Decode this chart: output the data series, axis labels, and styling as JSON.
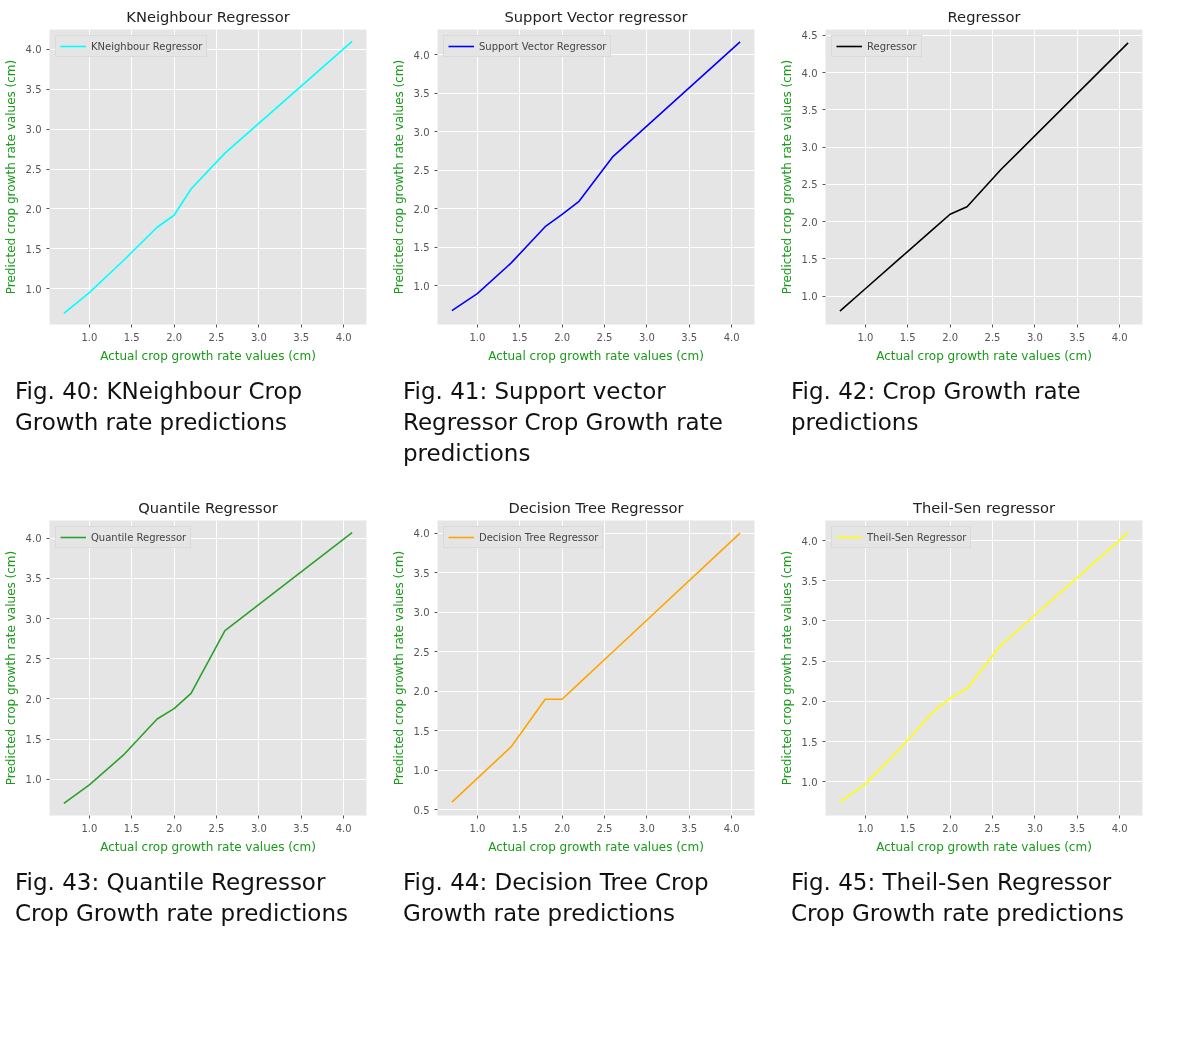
{
  "chart_data": [
    {
      "type": "line",
      "title": "KNeighbour Regressor",
      "xlabel": "Actual crop growth rate values (cm)",
      "ylabel": "Predicted crop growth rate values (cm)",
      "x": [
        0.7,
        1.0,
        1.4,
        1.8,
        2.0,
        2.2,
        2.6,
        4.1
      ],
      "series": [
        {
          "name": "KNeighbour Regressor",
          "color": "#00ffff",
          "values": [
            0.69,
            0.95,
            1.35,
            1.77,
            1.92,
            2.25,
            2.7,
            4.1
          ]
        }
      ],
      "xlim": [
        0.53,
        4.27
      ],
      "ylim": [
        0.55,
        4.25
      ],
      "xticks": [
        {
          "value": 1,
          "label": "1.0"
        },
        1.5,
        {
          "value": 2,
          "label": "2.0"
        },
        2.5,
        {
          "value": 3,
          "label": "3.0"
        },
        3.5,
        {
          "value": 4,
          "label": "4.0"
        }
      ],
      "yticks": [
        {
          "value": 1,
          "label": "1.0"
        },
        1.5,
        {
          "value": 2,
          "label": "2.0"
        },
        2.5,
        {
          "value": 3,
          "label": "3.0"
        },
        3.5,
        {
          "value": 4,
          "label": "4.0"
        }
      ],
      "grid": true,
      "legend": "top left",
      "annotations": [
        "Fig. 40: KNeighbour Crop Growth rate predictions"
      ]
    },
    {
      "type": "line",
      "title": "Support Vector regressor",
      "xlabel": "Actual crop growth rate values (cm)",
      "ylabel": "Predicted crop growth rate values (cm)",
      "x": [
        0.7,
        1.0,
        1.4,
        1.8,
        2.0,
        2.2,
        2.6,
        4.1
      ],
      "series": [
        {
          "name": "Support Vector Regressor",
          "color": "#0000ff",
          "values": [
            0.68,
            0.9,
            1.3,
            1.77,
            1.93,
            2.1,
            2.68,
            4.17
          ]
        }
      ],
      "xlim": [
        0.53,
        4.27
      ],
      "ylim": [
        0.5,
        4.33
      ],
      "xticks": [
        {
          "value": 1,
          "label": "1.0"
        },
        1.5,
        {
          "value": 2,
          "label": "2.0"
        },
        2.5,
        {
          "value": 3,
          "label": "3.0"
        },
        3.5,
        {
          "value": 4,
          "label": "4.0"
        }
      ],
      "yticks": [
        {
          "value": 1,
          "label": "1.0"
        },
        1.5,
        {
          "value": 2,
          "label": "2.0"
        },
        2.5,
        {
          "value": 3,
          "label": "3.0"
        },
        3.5,
        {
          "value": 4,
          "label": "4.0"
        }
      ],
      "grid": true,
      "legend": "top left",
      "annotations": [
        "Fig. 41: Support vector Regressor Crop Growth rate predictions"
      ]
    },
    {
      "type": "line",
      "title": "Regressor",
      "xlabel": "Actual crop growth rate values (cm)",
      "ylabel": "Predicted crop growth rate values (cm)",
      "x": [
        0.7,
        1.0,
        1.4,
        1.8,
        2.0,
        2.2,
        2.6,
        4.1
      ],
      "series": [
        {
          "name": "Regressor",
          "color": "#000000",
          "values": [
            0.8,
            1.1,
            1.5,
            1.9,
            2.1,
            2.2,
            2.7,
            4.4
          ]
        }
      ],
      "xlim": [
        0.53,
        4.27
      ],
      "ylim": [
        0.62,
        4.58
      ],
      "xticks": [
        {
          "value": 1,
          "label": "1.0"
        },
        1.5,
        {
          "value": 2,
          "label": "2.0"
        },
        2.5,
        {
          "value": 3,
          "label": "3.0"
        },
        3.5,
        {
          "value": 4,
          "label": "4.0"
        }
      ],
      "yticks": [
        {
          "value": 1,
          "label": "1.0"
        },
        1.5,
        {
          "value": 2,
          "label": "2.0"
        },
        2.5,
        {
          "value": 3,
          "label": "3.0"
        },
        3.5,
        {
          "value": 4,
          "label": "4.0"
        },
        4.5
      ],
      "grid": true,
      "legend": "top left",
      "annotations": [
        "Fig. 42: Crop Growth rate predictions"
      ]
    },
    {
      "type": "line",
      "title": "Quantile Regressor",
      "xlabel": "Actual crop growth rate values (cm)",
      "ylabel": "Predicted crop growth rate values (cm)",
      "x": [
        0.7,
        1.0,
        1.4,
        1.8,
        2.0,
        2.2,
        2.6,
        4.1
      ],
      "series": [
        {
          "name": "Quantile Regressor",
          "color": "#2ca02c",
          "values": [
            0.7,
            0.93,
            1.3,
            1.75,
            1.88,
            2.07,
            2.85,
            4.07
          ]
        }
      ],
      "xlim": [
        0.53,
        4.27
      ],
      "ylim": [
        0.55,
        4.22
      ],
      "xticks": [
        {
          "value": 1,
          "label": "1.0"
        },
        1.5,
        {
          "value": 2,
          "label": "2.0"
        },
        2.5,
        {
          "value": 3,
          "label": "3.0"
        },
        3.5,
        {
          "value": 4,
          "label": "4.0"
        }
      ],
      "yticks": [
        {
          "value": 1,
          "label": "1.0"
        },
        1.5,
        {
          "value": 2,
          "label": "2.0"
        },
        2.5,
        {
          "value": 3,
          "label": "3.0"
        },
        3.5,
        {
          "value": 4,
          "label": "4.0"
        }
      ],
      "grid": true,
      "legend": "top left",
      "annotations": [
        "Fig. 43: Quantile Regressor Crop Growth rate predictions"
      ]
    },
    {
      "type": "line",
      "title": "Decision Tree Regressor",
      "xlabel": "Actual crop growth rate values (cm)",
      "ylabel": "Predicted crop growth rate values (cm)",
      "x": [
        0.7,
        1.0,
        1.4,
        1.8,
        2.0,
        2.2,
        2.6,
        4.1
      ],
      "series": [
        {
          "name": "Decision Tree Regressor",
          "color": "#ffa500",
          "values": [
            0.6,
            0.9,
            1.3,
            1.9,
            1.9,
            2.1,
            2.5,
            4.0
          ]
        }
      ],
      "xlim": [
        0.53,
        4.27
      ],
      "ylim": [
        0.43,
        4.16
      ],
      "xticks": [
        {
          "value": 1,
          "label": "1.0"
        },
        1.5,
        {
          "value": 2,
          "label": "2.0"
        },
        2.5,
        {
          "value": 3,
          "label": "3.0"
        },
        3.5,
        {
          "value": 4,
          "label": "4.0"
        }
      ],
      "yticks": [
        0.5,
        {
          "value": 1,
          "label": "1.0"
        },
        1.5,
        {
          "value": 2,
          "label": "2.0"
        },
        2.5,
        {
          "value": 3,
          "label": "3.0"
        },
        3.5,
        {
          "value": 4,
          "label": "4.0"
        }
      ],
      "grid": true,
      "legend": "top left",
      "annotations": [
        "Fig. 44: Decision Tree Crop Growth rate predictions"
      ]
    },
    {
      "type": "line",
      "title": "Theil-Sen regressor",
      "xlabel": "Actual crop growth rate values (cm)",
      "ylabel": "Predicted crop growth rate values (cm)",
      "x": [
        0.7,
        1.0,
        1.4,
        1.8,
        2.0,
        2.2,
        2.6,
        4.1
      ],
      "series": [
        {
          "name": "Theil-Sen Regressor",
          "color": "#ffff00",
          "values": [
            0.75,
            0.97,
            1.4,
            1.87,
            2.04,
            2.16,
            2.7,
            4.1
          ]
        }
      ],
      "xlim": [
        0.53,
        4.27
      ],
      "ylim": [
        0.58,
        4.25
      ],
      "xticks": [
        {
          "value": 1,
          "label": "1.0"
        },
        1.5,
        {
          "value": 2,
          "label": "2.0"
        },
        2.5,
        {
          "value": 3,
          "label": "3.0"
        },
        3.5,
        {
          "value": 4,
          "label": "4.0"
        }
      ],
      "yticks": [
        {
          "value": 1,
          "label": "1.0"
        },
        1.5,
        {
          "value": 2,
          "label": "2.0"
        },
        2.5,
        {
          "value": 3,
          "label": "3.0"
        },
        3.5,
        {
          "value": 4,
          "label": "4.0"
        }
      ],
      "grid": true,
      "legend": "top left",
      "annotations": [
        "Fig. 45: Theil-Sen Regressor Crop Growth rate predictions"
      ]
    }
  ]
}
